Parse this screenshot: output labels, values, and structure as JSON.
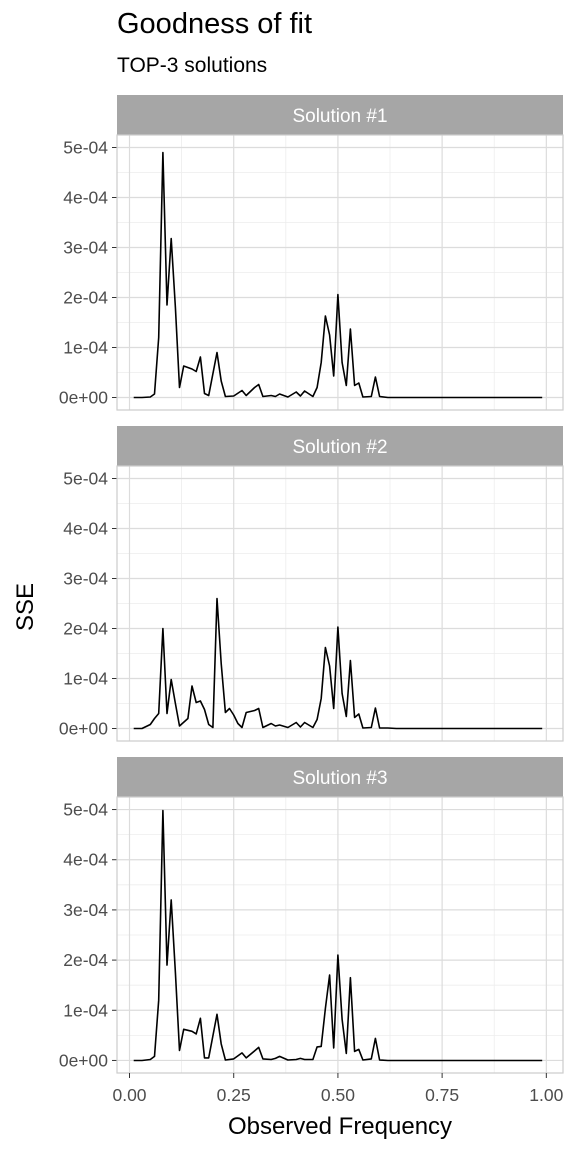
{
  "chart_data": {
    "type": "line",
    "title": "Goodness of fit",
    "subtitle": "TOP-3 solutions",
    "xlabel": "Observed Frequency",
    "ylabel": "SSE",
    "xlim": [
      -0.03,
      1.04
    ],
    "ylim": [
      -2.5e-05,
      0.000525
    ],
    "x_ticks": [
      0,
      0.25,
      0.5,
      0.75,
      1
    ],
    "x_tick_labels": [
      "0.00",
      "0.25",
      "0.50",
      "0.75",
      "1.00"
    ],
    "y_ticks": [
      0,
      0.0001,
      0.0002,
      0.0003,
      0.0004,
      0.0005
    ],
    "y_tick_labels": [
      "0e+00",
      "1e-04",
      "2e-04",
      "3e-04",
      "4e-04",
      "5e-04"
    ],
    "grid": true,
    "line_color": "#000000",
    "strip_color": "#a6a6a6",
    "panels": [
      {
        "strip_label": "Solution #1",
        "x": [
          0.01,
          0.03,
          0.05,
          0.06,
          0.07,
          0.08,
          0.09,
          0.1,
          0.11,
          0.12,
          0.13,
          0.15,
          0.16,
          0.17,
          0.18,
          0.19,
          0.21,
          0.22,
          0.23,
          0.25,
          0.27,
          0.28,
          0.3,
          0.31,
          0.32,
          0.34,
          0.35,
          0.36,
          0.38,
          0.4,
          0.41,
          0.42,
          0.44,
          0.45,
          0.46,
          0.47,
          0.48,
          0.49,
          0.5,
          0.51,
          0.52,
          0.53,
          0.54,
          0.55,
          0.56,
          0.58,
          0.59,
          0.6,
          0.62,
          0.64,
          0.66,
          0.7,
          0.75,
          0.8,
          0.85,
          0.9,
          0.95,
          0.99
        ],
        "y": [
          0,
          0,
          1e-06,
          7e-06,
          0.00012,
          0.00049,
          0.000185,
          0.000318,
          0.00018,
          2e-05,
          6.3e-05,
          5.7e-05,
          5.2e-05,
          8.1e-05,
          8e-06,
          4e-06,
          9e-05,
          3.3e-05,
          2e-06,
          3e-06,
          1.4e-05,
          4e-06,
          2e-05,
          2.6e-05,
          2e-06,
          4e-06,
          2e-06,
          7e-06,
          1e-06,
          1.1e-05,
          3e-06,
          1.3e-05,
          2e-06,
          2e-05,
          7e-05,
          0.000163,
          0.000125,
          4.3e-05,
          0.000206,
          7e-05,
          2.4e-05,
          0.000137,
          2.4e-05,
          2.9e-05,
          1e-06,
          2e-06,
          4.1e-05,
          2e-06,
          0,
          0,
          0,
          0,
          0,
          0,
          0,
          0,
          0,
          0
        ]
      },
      {
        "strip_label": "Solution #2",
        "x": [
          0.01,
          0.03,
          0.05,
          0.06,
          0.07,
          0.08,
          0.09,
          0.1,
          0.11,
          0.12,
          0.14,
          0.15,
          0.16,
          0.17,
          0.18,
          0.19,
          0.2,
          0.21,
          0.22,
          0.23,
          0.24,
          0.25,
          0.26,
          0.27,
          0.28,
          0.3,
          0.31,
          0.32,
          0.34,
          0.35,
          0.36,
          0.38,
          0.4,
          0.41,
          0.42,
          0.44,
          0.45,
          0.46,
          0.47,
          0.48,
          0.49,
          0.5,
          0.51,
          0.52,
          0.53,
          0.54,
          0.55,
          0.56,
          0.58,
          0.59,
          0.6,
          0.62,
          0.64,
          0.66,
          0.7,
          0.75,
          0.8,
          0.85,
          0.9,
          0.95,
          0.99
        ],
        "y": [
          0,
          0,
          8e-06,
          2e-05,
          3e-05,
          0.0002,
          3e-05,
          9.8e-05,
          5e-05,
          5e-06,
          2e-05,
          8.5e-05,
          5.2e-05,
          5.5e-05,
          3.8e-05,
          8e-06,
          2e-06,
          0.00026,
          0.00013,
          3.2e-05,
          4e-05,
          2.7e-05,
          1e-05,
          2e-06,
          3.2e-05,
          3.6e-05,
          4e-05,
          2e-06,
          1e-05,
          5e-06,
          7e-06,
          2e-06,
          1.2e-05,
          3e-06,
          1.2e-05,
          2e-06,
          1.8e-05,
          6e-05,
          0.000162,
          0.000125,
          4e-05,
          0.000203,
          7e-05,
          2.4e-05,
          0.000136,
          2.2e-05,
          2.9e-05,
          1e-06,
          2e-06,
          4.1e-05,
          1e-06,
          1e-06,
          0,
          0,
          0,
          0,
          0,
          0,
          0,
          0,
          0
        ]
      },
      {
        "strip_label": "Solution #3",
        "x": [
          0.01,
          0.03,
          0.05,
          0.06,
          0.07,
          0.08,
          0.09,
          0.1,
          0.11,
          0.12,
          0.13,
          0.15,
          0.16,
          0.17,
          0.18,
          0.19,
          0.21,
          0.22,
          0.23,
          0.25,
          0.27,
          0.28,
          0.3,
          0.31,
          0.32,
          0.34,
          0.35,
          0.36,
          0.38,
          0.4,
          0.41,
          0.42,
          0.44,
          0.45,
          0.46,
          0.47,
          0.48,
          0.49,
          0.5,
          0.51,
          0.52,
          0.53,
          0.54,
          0.55,
          0.56,
          0.58,
          0.59,
          0.6,
          0.62,
          0.64,
          0.66,
          0.7,
          0.75,
          0.8,
          0.85,
          0.9,
          0.95,
          0.99
        ],
        "y": [
          0,
          0,
          2e-06,
          8e-06,
          0.00012,
          0.000498,
          0.00019,
          0.00032,
          0.000175,
          2e-05,
          6.2e-05,
          5.8e-05,
          5.3e-05,
          8.4e-05,
          5e-06,
          5e-06,
          9.2e-05,
          3.3e-05,
          1e-06,
          3e-06,
          1.5e-05,
          5e-06,
          1.9e-05,
          2.6e-05,
          3e-06,
          2e-06,
          4e-06,
          8e-06,
          1e-06,
          2e-06,
          4e-06,
          2e-06,
          2e-06,
          2.7e-05,
          2.8e-05,
          0.000104,
          0.00017,
          2.5e-05,
          0.00021,
          8.2e-05,
          1.4e-05,
          0.000165,
          1.8e-05,
          2.2e-05,
          1e-06,
          3e-06,
          4.4e-05,
          1e-06,
          0,
          0,
          0,
          0,
          0,
          0,
          0,
          0,
          0,
          0
        ]
      }
    ]
  }
}
